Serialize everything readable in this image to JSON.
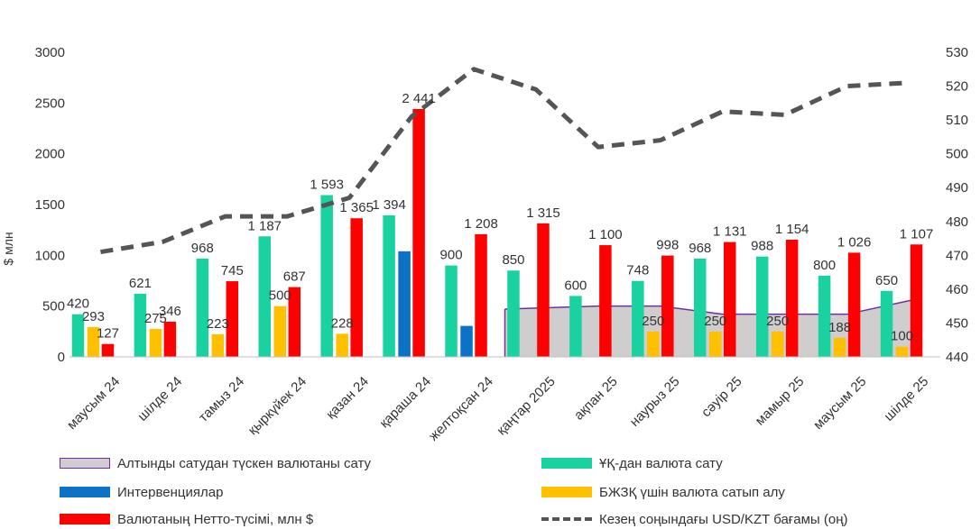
{
  "chart_data": {
    "type": "bar",
    "ylabel": "$ млн",
    "ylim": [
      0,
      3000
    ],
    "y2lim": [
      440,
      530
    ],
    "yticks": [
      "0",
      "500",
      "1000",
      "1500",
      "2000",
      "2500",
      "3000"
    ],
    "y2ticks": [
      "440",
      "450",
      "460",
      "470",
      "480",
      "490",
      "500",
      "510",
      "520",
      "530"
    ],
    "categories": [
      "маусым 24",
      "шілде 24",
      "тамыз 24",
      "қыркүйек 24",
      "қазан 24",
      "қараша 24",
      "желтоқсан 24",
      "қаңтар 2025",
      "ақпан 25",
      "наурыз 25",
      "сәуір 25",
      "мамыр 25",
      "маусым 25",
      "шілде 25"
    ],
    "series": [
      {
        "name": "Алтынды сатудан түскен валютаны сату",
        "type": "area",
        "color": "#cfcdcd",
        "edge": "#7030a0",
        "values": [
          null,
          null,
          null,
          null,
          null,
          null,
          null,
          470,
          500,
          500,
          420,
          420,
          420,
          560
        ]
      },
      {
        "name": "ҰҚ-дан валюта сату",
        "type": "bar",
        "color": "#1ad2a0",
        "values": [
          420,
          621,
          968,
          1187,
          1593,
          1394,
          900,
          850,
          600,
          748,
          968,
          988,
          800,
          650
        ],
        "labels": [
          "420",
          "621",
          "968",
          "1 187",
          "1 593",
          "1 394",
          "900",
          "850",
          "600",
          "748",
          "968",
          "988",
          "800",
          "650"
        ]
      },
      {
        "name": "Интервенциялар",
        "type": "bar",
        "color": "#0b72c6",
        "values": [
          0,
          0,
          0,
          0,
          0,
          1040,
          305,
          0,
          0,
          0,
          0,
          0,
          0,
          0
        ]
      },
      {
        "name": "БЖЗҚ үшін валюта сатып алу",
        "type": "bar",
        "color": "#ffc000",
        "values": [
          293,
          275,
          223,
          500,
          228,
          0,
          0,
          0,
          0,
          250,
          250,
          250,
          188,
          100
        ],
        "labels": [
          "293",
          "275",
          "223",
          "500",
          "228",
          "",
          "",
          "",
          "",
          "250",
          "250",
          "250",
          "188",
          "100"
        ]
      },
      {
        "name": "Валютаның Нетто-түсімі, млн $",
        "type": "bar",
        "color": "#ff0000",
        "values": [
          127,
          346,
          745,
          687,
          1365,
          2441,
          1208,
          1315,
          1100,
          998,
          1131,
          1154,
          1026,
          1107
        ],
        "labels": [
          "127",
          "346",
          "745",
          "687",
          "1 365",
          "2 441",
          "1 208",
          "1 315",
          "1 100",
          "998",
          "1 131",
          "1 154",
          "1 026",
          "1 107"
        ]
      },
      {
        "name": "Кезең соңындағы USD/KZT бағамы (оң)",
        "type": "line",
        "axis": "right",
        "color": "#555555",
        "values": [
          471,
          474,
          481.5,
          481.5,
          487,
          511,
          525,
          519,
          502,
          504,
          512.5,
          511.5,
          520,
          521
        ]
      }
    ],
    "legend_position": "bottom",
    "grid": false
  }
}
